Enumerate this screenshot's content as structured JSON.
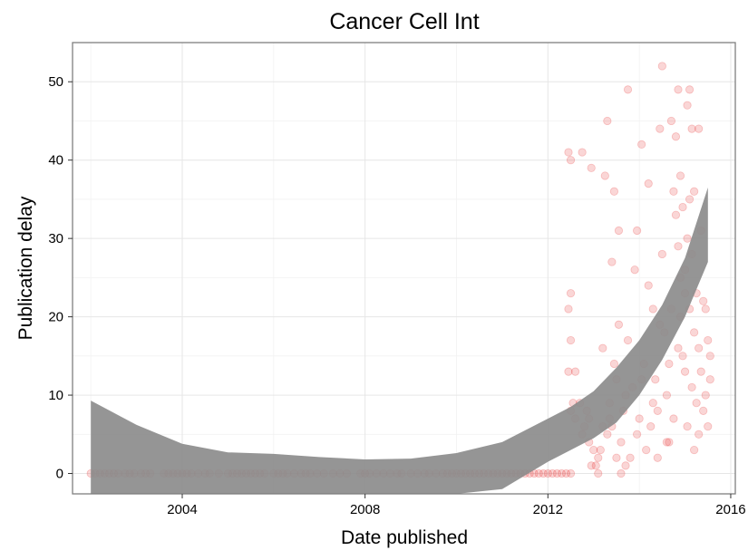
{
  "chart_data": {
    "type": "scatter",
    "title": "Cancer Cell Int",
    "xlabel": "Date published",
    "ylabel": "Publication delay",
    "xlim": [
      2001.6,
      2016.1
    ],
    "ylim": [
      -2.6,
      55
    ],
    "x_ticks": [
      2004,
      2008,
      2012,
      2016
    ],
    "x_tick_labels": [
      "2004",
      "2008",
      "2012",
      "2016"
    ],
    "y_ticks": [
      0,
      10,
      20,
      30,
      40,
      50
    ],
    "y_tick_labels": [
      "0",
      "10",
      "20",
      "30",
      "40",
      "50"
    ],
    "grid": true,
    "point_color": "#e31a1c",
    "point_alpha": 0.18,
    "band_color": "#8c8c8c",
    "series": [
      {
        "points": [
          [
            2002.0,
            0
          ],
          [
            2002.1,
            0
          ],
          [
            2002.2,
            0
          ],
          [
            2002.3,
            0
          ],
          [
            2002.4,
            0
          ],
          [
            2002.5,
            0
          ],
          [
            2002.6,
            0
          ],
          [
            2002.75,
            0
          ],
          [
            2002.85,
            0
          ],
          [
            2002.95,
            0
          ],
          [
            2003.1,
            0
          ],
          [
            2003.2,
            0
          ],
          [
            2003.3,
            0
          ],
          [
            2003.6,
            0
          ],
          [
            2003.7,
            0
          ],
          [
            2003.8,
            0
          ],
          [
            2003.9,
            0
          ],
          [
            2004.0,
            0
          ],
          [
            2004.1,
            0
          ],
          [
            2004.2,
            0
          ],
          [
            2004.35,
            0
          ],
          [
            2004.5,
            0
          ],
          [
            2004.6,
            0
          ],
          [
            2004.8,
            0
          ],
          [
            2005.0,
            0
          ],
          [
            2005.1,
            0
          ],
          [
            2005.2,
            0
          ],
          [
            2005.3,
            0
          ],
          [
            2005.4,
            0
          ],
          [
            2005.5,
            0
          ],
          [
            2005.6,
            0
          ],
          [
            2005.7,
            0
          ],
          [
            2005.8,
            0
          ],
          [
            2006.0,
            0
          ],
          [
            2006.1,
            0
          ],
          [
            2006.2,
            0
          ],
          [
            2006.3,
            0
          ],
          [
            2006.45,
            0
          ],
          [
            2006.6,
            0
          ],
          [
            2006.7,
            0
          ],
          [
            2006.8,
            0
          ],
          [
            2006.95,
            0
          ],
          [
            2007.1,
            0
          ],
          [
            2007.3,
            0
          ],
          [
            2007.45,
            0
          ],
          [
            2007.6,
            0
          ],
          [
            2007.9,
            0
          ],
          [
            2008.0,
            0
          ],
          [
            2008.1,
            0
          ],
          [
            2008.25,
            0
          ],
          [
            2008.4,
            0
          ],
          [
            2008.55,
            0
          ],
          [
            2008.7,
            0
          ],
          [
            2008.8,
            0
          ],
          [
            2009.0,
            0
          ],
          [
            2009.15,
            0
          ],
          [
            2009.3,
            0
          ],
          [
            2009.4,
            0
          ],
          [
            2009.55,
            0
          ],
          [
            2009.7,
            0
          ],
          [
            2009.8,
            0
          ],
          [
            2009.9,
            0
          ],
          [
            2010.0,
            0
          ],
          [
            2010.1,
            0
          ],
          [
            2010.2,
            0
          ],
          [
            2010.3,
            0
          ],
          [
            2010.4,
            0
          ],
          [
            2010.5,
            0
          ],
          [
            2010.6,
            0
          ],
          [
            2010.7,
            0
          ],
          [
            2010.8,
            0
          ],
          [
            2010.9,
            0
          ],
          [
            2011.0,
            0
          ],
          [
            2011.1,
            0
          ],
          [
            2011.2,
            0
          ],
          [
            2011.3,
            0
          ],
          [
            2011.4,
            0
          ],
          [
            2011.5,
            0
          ],
          [
            2011.6,
            0
          ],
          [
            2011.7,
            0
          ],
          [
            2011.8,
            0
          ],
          [
            2011.9,
            0
          ],
          [
            2012.0,
            0
          ],
          [
            2012.1,
            0
          ],
          [
            2012.2,
            0
          ],
          [
            2012.3,
            0
          ],
          [
            2012.4,
            0
          ],
          [
            2012.5,
            0
          ],
          [
            2012.45,
            41
          ],
          [
            2012.5,
            40
          ],
          [
            2012.75,
            41
          ],
          [
            2012.45,
            21
          ],
          [
            2012.5,
            23
          ],
          [
            2012.5,
            17
          ],
          [
            2012.45,
            13
          ],
          [
            2012.6,
            13
          ],
          [
            2012.55,
            9
          ],
          [
            2012.7,
            9
          ],
          [
            2012.5,
            8
          ],
          [
            2012.8,
            6
          ],
          [
            2012.85,
            8
          ],
          [
            2012.9,
            7
          ],
          [
            2012.6,
            7
          ],
          [
            2012.75,
            5
          ],
          [
            2012.9,
            4
          ],
          [
            2012.95,
            39
          ],
          [
            2013.0,
            3
          ],
          [
            2013.05,
            1
          ],
          [
            2013.1,
            2
          ],
          [
            2013.15,
            3
          ],
          [
            2013.2,
            6
          ],
          [
            2013.2,
            16
          ],
          [
            2013.25,
            38
          ],
          [
            2013.3,
            45
          ],
          [
            2013.3,
            5
          ],
          [
            2013.35,
            7
          ],
          [
            2013.35,
            9
          ],
          [
            2013.4,
            6
          ],
          [
            2013.4,
            27
          ],
          [
            2013.45,
            36
          ],
          [
            2013.45,
            14
          ],
          [
            2013.5,
            12
          ],
          [
            2013.5,
            2
          ],
          [
            2013.55,
            19
          ],
          [
            2013.55,
            31
          ],
          [
            2013.6,
            4
          ],
          [
            2013.65,
            8
          ],
          [
            2013.7,
            1
          ],
          [
            2013.7,
            10
          ],
          [
            2013.75,
            49
          ],
          [
            2013.75,
            17
          ],
          [
            2013.8,
            2
          ],
          [
            2013.85,
            11
          ],
          [
            2013.9,
            26
          ],
          [
            2013.95,
            5
          ],
          [
            2013.95,
            31
          ],
          [
            2014.0,
            7
          ],
          [
            2014.05,
            42
          ],
          [
            2014.1,
            14
          ],
          [
            2014.15,
            3
          ],
          [
            2014.2,
            37
          ],
          [
            2014.25,
            6
          ],
          [
            2014.3,
            21
          ],
          [
            2014.3,
            9
          ],
          [
            2014.35,
            12
          ],
          [
            2014.4,
            2
          ],
          [
            2014.45,
            44
          ],
          [
            2014.5,
            52
          ],
          [
            2014.5,
            28
          ],
          [
            2014.55,
            18
          ],
          [
            2014.6,
            10
          ],
          [
            2014.6,
            4
          ],
          [
            2014.65,
            14
          ],
          [
            2014.7,
            45
          ],
          [
            2014.7,
            21
          ],
          [
            2014.75,
            7
          ],
          [
            2014.75,
            36
          ],
          [
            2014.8,
            43
          ],
          [
            2014.8,
            33
          ],
          [
            2014.85,
            49
          ],
          [
            2014.85,
            29
          ],
          [
            2014.9,
            38
          ],
          [
            2014.9,
            25
          ],
          [
            2014.9,
            20
          ],
          [
            2014.95,
            34
          ],
          [
            2014.95,
            15
          ],
          [
            2015.0,
            23
          ],
          [
            2015.0,
            13
          ],
          [
            2015.05,
            47
          ],
          [
            2015.05,
            30
          ],
          [
            2015.05,
            6
          ],
          [
            2015.1,
            49
          ],
          [
            2015.1,
            35
          ],
          [
            2015.1,
            21
          ],
          [
            2015.15,
            44
          ],
          [
            2015.15,
            28
          ],
          [
            2015.15,
            11
          ],
          [
            2015.2,
            36
          ],
          [
            2015.2,
            18
          ],
          [
            2015.25,
            23
          ],
          [
            2015.25,
            9
          ],
          [
            2015.3,
            44
          ],
          [
            2015.3,
            16
          ],
          [
            2015.3,
            5
          ],
          [
            2015.35,
            31
          ],
          [
            2015.35,
            13
          ],
          [
            2015.4,
            22
          ],
          [
            2015.4,
            8
          ],
          [
            2015.45,
            21
          ],
          [
            2015.45,
            10
          ],
          [
            2015.5,
            17
          ],
          [
            2015.5,
            6
          ],
          [
            2015.55,
            12
          ],
          [
            2015.55,
            15
          ],
          [
            2013.6,
            0
          ],
          [
            2013.1,
            0
          ],
          [
            2012.95,
            1
          ],
          [
            2014.05,
            12
          ],
          [
            2014.2,
            24
          ],
          [
            2014.4,
            8
          ],
          [
            2014.45,
            19
          ],
          [
            2014.65,
            4
          ],
          [
            2014.85,
            16
          ],
          [
            2015.0,
            26
          ],
          [
            2015.2,
            3
          ]
        ]
      }
    ],
    "smooth_band": {
      "x": [
        2002.0,
        2003.0,
        2004.0,
        2005.0,
        2006.0,
        2007.0,
        2008.0,
        2009.0,
        2010.0,
        2011.0,
        2012.0,
        2012.5,
        2013.0,
        2013.5,
        2014.0,
        2014.5,
        2015.0,
        2015.5
      ],
      "lower": [
        -99,
        -99,
        -99,
        -99,
        -99,
        -99,
        -99,
        -99,
        -99,
        -2.0,
        1.5,
        3.0,
        4.5,
        6.5,
        10.0,
        14.5,
        20.0,
        27.0
      ],
      "upper": [
        9.3,
        6.2,
        3.8,
        2.7,
        2.5,
        2.1,
        1.8,
        1.9,
        2.6,
        4.0,
        7.0,
        8.5,
        10.5,
        13.5,
        17.0,
        21.5,
        27.5,
        36.5
      ]
    }
  }
}
